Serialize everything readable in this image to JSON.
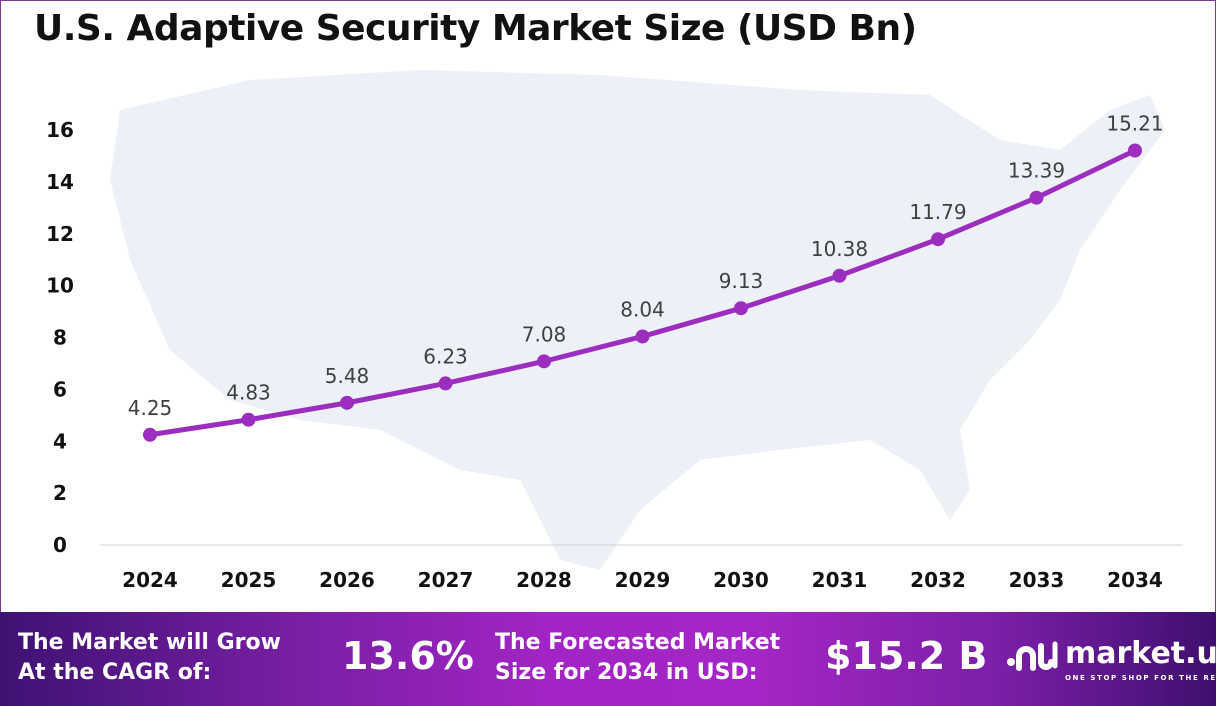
{
  "title": "U.S. Adaptive Security Market Size (USD Bn)",
  "chart_data": {
    "type": "line",
    "title": "U.S. Adaptive Security Market Size (USD Bn)",
    "categories": [
      "2024",
      "2025",
      "2026",
      "2027",
      "2028",
      "2029",
      "2030",
      "2031",
      "2032",
      "2033",
      "2034"
    ],
    "values": [
      4.25,
      4.83,
      5.48,
      6.23,
      7.08,
      8.04,
      9.13,
      10.38,
      11.79,
      13.39,
      15.21
    ],
    "data_labels": [
      "4.25",
      "4.83",
      "5.48",
      "6.23",
      "7.08",
      "8.04",
      "9.13",
      "10.38",
      "11.79",
      "13.39",
      "15.21"
    ],
    "yticks": [
      "0",
      "2",
      "4",
      "6",
      "8",
      "10",
      "12",
      "14",
      "16"
    ],
    "ylim": [
      0,
      16
    ],
    "grid": false,
    "line_color": "#9b2dbf",
    "background": "US map silhouette"
  },
  "banner": {
    "cagr_label": "The Market will Grow At the CAGR of:",
    "cagr_value": "13.6%",
    "forecast_label": "The Forecasted Market Size for 2034 in USD:",
    "forecast_value": "$15.2 B",
    "logo_name": "market.us",
    "logo_tagline": "ONE STOP SHOP FOR THE REPORTS"
  }
}
